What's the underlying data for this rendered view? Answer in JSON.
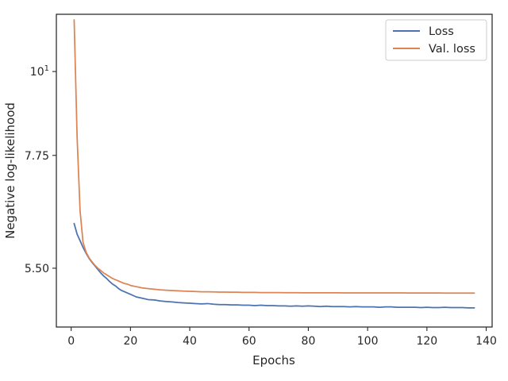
{
  "chart_data": {
    "type": "line",
    "xlabel": "Epochs",
    "ylabel": "Negative log-likelihood",
    "scale": "log-y",
    "xlim": [
      -5,
      142
    ],
    "ylim": [
      4.6,
      11.9
    ],
    "x_ticks": [
      0,
      20,
      40,
      60,
      80,
      100,
      120,
      140
    ],
    "y_ticks": [
      {
        "value": 10,
        "label": "10",
        "sup": "1"
      },
      {
        "value": 7.75,
        "label": "7.75",
        "sup": ""
      },
      {
        "value": 5.5,
        "label": "5.50",
        "sup": ""
      }
    ],
    "grid": false,
    "legend_position": "top-right",
    "series": [
      {
        "name": "Loss",
        "color": "#4c72b0",
        "x": [
          1,
          2,
          3,
          4,
          5,
          6,
          7,
          8,
          9,
          10,
          11,
          12,
          13,
          14,
          15,
          16,
          17,
          18,
          19,
          20,
          22,
          24,
          26,
          28,
          30,
          32,
          34,
          36,
          38,
          40,
          42,
          44,
          46,
          48,
          50,
          52,
          54,
          56,
          58,
          60,
          62,
          64,
          66,
          68,
          70,
          72,
          74,
          76,
          78,
          80,
          82,
          84,
          86,
          88,
          90,
          92,
          94,
          96,
          98,
          100,
          102,
          104,
          106,
          108,
          110,
          112,
          114,
          116,
          118,
          120,
          122,
          124,
          126,
          128,
          130,
          132,
          134,
          136
        ],
        "values": [
          6.3,
          6.1,
          5.98,
          5.86,
          5.76,
          5.67,
          5.6,
          5.54,
          5.48,
          5.42,
          5.37,
          5.33,
          5.28,
          5.24,
          5.21,
          5.17,
          5.14,
          5.12,
          5.1,
          5.08,
          5.04,
          5.02,
          5.0,
          4.995,
          4.98,
          4.97,
          4.965,
          4.955,
          4.95,
          4.945,
          4.94,
          4.935,
          4.94,
          4.93,
          4.925,
          4.925,
          4.92,
          4.92,
          4.915,
          4.915,
          4.91,
          4.915,
          4.91,
          4.91,
          4.905,
          4.905,
          4.9,
          4.905,
          4.9,
          4.905,
          4.9,
          4.895,
          4.9,
          4.895,
          4.895,
          4.895,
          4.89,
          4.895,
          4.89,
          4.89,
          4.89,
          4.885,
          4.89,
          4.89,
          4.885,
          4.885,
          4.885,
          4.885,
          4.88,
          4.885,
          4.88,
          4.88,
          4.885,
          4.88,
          4.88,
          4.88,
          4.875,
          4.875
        ]
      },
      {
        "name": "Val. loss",
        "color": "#dd8452",
        "x": [
          1,
          2,
          3,
          4,
          5,
          6,
          7,
          8,
          9,
          10,
          11,
          12,
          13,
          14,
          15,
          16,
          17,
          18,
          19,
          20,
          22,
          24,
          26,
          28,
          30,
          32,
          34,
          36,
          38,
          40,
          42,
          44,
          46,
          48,
          50,
          52,
          54,
          56,
          58,
          60,
          62,
          64,
          66,
          68,
          70,
          72,
          74,
          76,
          78,
          80,
          82,
          84,
          86,
          88,
          90,
          92,
          94,
          96,
          98,
          100,
          102,
          104,
          106,
          108,
          110,
          112,
          114,
          116,
          118,
          120,
          122,
          124,
          126,
          128,
          130,
          132,
          134,
          136
        ],
        "values": [
          11.7,
          8.2,
          6.55,
          5.95,
          5.78,
          5.68,
          5.61,
          5.55,
          5.5,
          5.46,
          5.42,
          5.39,
          5.36,
          5.33,
          5.31,
          5.29,
          5.27,
          5.25,
          5.24,
          5.22,
          5.2,
          5.18,
          5.17,
          5.16,
          5.15,
          5.145,
          5.14,
          5.135,
          5.13,
          5.128,
          5.125,
          5.12,
          5.12,
          5.118,
          5.115,
          5.115,
          5.113,
          5.113,
          5.11,
          5.11,
          5.11,
          5.108,
          5.108,
          5.107,
          5.107,
          5.106,
          5.106,
          5.106,
          5.105,
          5.105,
          5.105,
          5.104,
          5.104,
          5.104,
          5.104,
          5.103,
          5.103,
          5.103,
          5.103,
          5.103,
          5.102,
          5.102,
          5.102,
          5.102,
          5.102,
          5.102,
          5.101,
          5.101,
          5.101,
          5.101,
          5.101,
          5.101,
          5.1,
          5.1,
          5.1,
          5.1,
          5.1,
          5.1
        ]
      }
    ]
  }
}
